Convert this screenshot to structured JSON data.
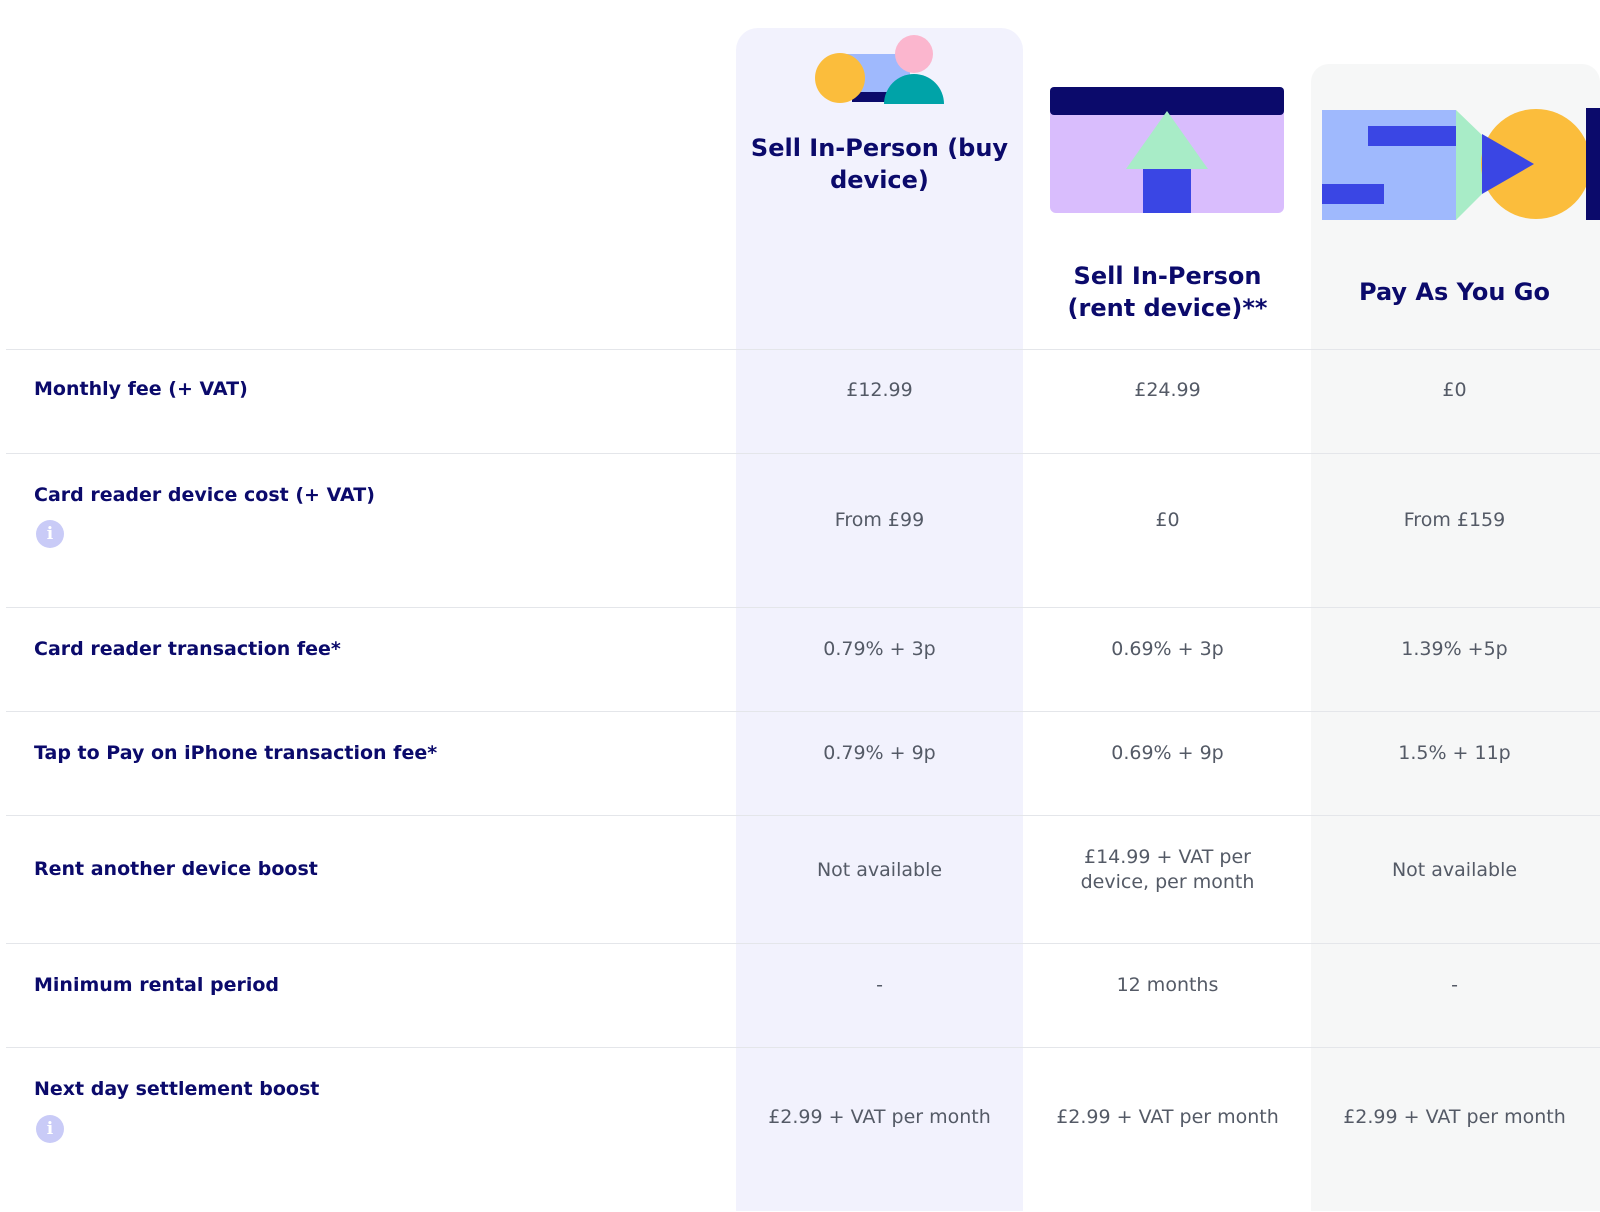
{
  "plans": [
    {
      "title": "Sell In-Person (buy device)"
    },
    {
      "title": "Sell In-Person (rent device)**"
    },
    {
      "title": "Pay As You Go"
    }
  ],
  "rows": [
    {
      "label": "Monthly fee (+ VAT)",
      "values": [
        "£12.99",
        "£24.99",
        "£0"
      ],
      "info": false
    },
    {
      "label": "Card reader device cost (+ VAT)",
      "values": [
        "From £99",
        "£0",
        "From £159"
      ],
      "info": true
    },
    {
      "label": "Card reader transaction fee*",
      "values": [
        "0.79% + 3p",
        "0.69% + 3p",
        "1.39% +5p"
      ],
      "info": false
    },
    {
      "label": "Tap to Pay on iPhone transaction fee*",
      "values": [
        "0.79% + 9p",
        "0.69% + 9p",
        "1.5% + 11p"
      ],
      "info": false
    },
    {
      "label": "Rent another device boost",
      "values": [
        "Not available",
        "£14.99 + VAT per device, per month",
        "Not available"
      ],
      "info": false
    },
    {
      "label": "Minimum rental period",
      "values": [
        "-",
        "12 months",
        "-"
      ],
      "info": false
    },
    {
      "label": "Next day settlement boost",
      "values": [
        "£2.99 + VAT per month",
        "£2.99 + VAT per month",
        "£2.99 + VAT per month"
      ],
      "info": true
    }
  ],
  "icons": {
    "info": "info-icon",
    "info_glyph": "i"
  },
  "colors": {
    "navy": "#0b0a6b",
    "buy_column_bg": "#f2f2fd",
    "payg_column_bg": "#f6f7f7",
    "yellow": "#fbbd3c",
    "pink": "#fbb6ce",
    "teal": "#00a3a8",
    "lilac": "#d9bdfd",
    "mint": "#a8ecc7",
    "blue": "#3a46e4",
    "light_blue": "#9fb9fd"
  }
}
